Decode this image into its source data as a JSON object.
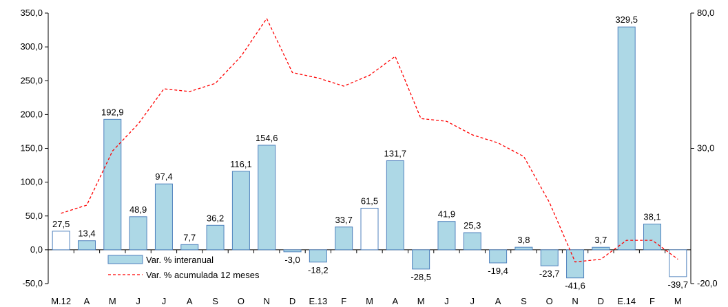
{
  "chart_data": {
    "type": "bar",
    "categories": [
      "M.12",
      "A",
      "M",
      "J",
      "J",
      "A",
      "S",
      "O",
      "N",
      "D",
      "E.13",
      "F",
      "M",
      "A",
      "M",
      "J",
      "J",
      "A",
      "S",
      "O",
      "N",
      "D",
      "E.14",
      "F",
      "M"
    ],
    "series": [
      {
        "name": "Var. % interanual",
        "type": "bar",
        "axis": "left",
        "values": [
          27.5,
          13.4,
          192.9,
          48.9,
          97.4,
          7.7,
          36.2,
          116.1,
          154.6,
          -3.0,
          -18.2,
          33.7,
          61.5,
          131.7,
          -28.5,
          41.9,
          25.3,
          -19.4,
          3.8,
          -23.7,
          -41.6,
          3.7,
          329.5,
          38.1,
          -39.7
        ],
        "labels": [
          "27,5",
          "13,4",
          "192,9",
          "48,9",
          "97,4",
          "7,7",
          "36,2",
          "116,1",
          "154,6",
          "-3,0",
          "-18,2",
          "33,7",
          "61,5",
          "131,7",
          "-28,5",
          "41,9",
          "25,3",
          "-19,4",
          "3,8",
          "-23,7",
          "-41,6",
          "3,7",
          "329,5",
          "38,1",
          "-39,7"
        ],
        "hollow": [
          true,
          false,
          false,
          false,
          false,
          false,
          false,
          false,
          false,
          false,
          false,
          false,
          true,
          false,
          false,
          false,
          false,
          false,
          false,
          false,
          false,
          false,
          false,
          false,
          true
        ],
        "color": "#add8e6",
        "stroke": "#4f81bd"
      },
      {
        "name": "Var. % acumulada 12 meses",
        "type": "line",
        "axis": "right",
        "style": "dashed",
        "color": "#ff0000",
        "values": [
          6,
          9,
          29,
          39,
          52,
          51,
          54,
          64,
          78,
          58,
          56,
          53,
          57,
          64,
          41,
          40,
          35,
          32,
          27,
          10,
          -12,
          -11,
          -4,
          -4,
          -11
        ]
      }
    ],
    "y_left": {
      "ylim": [
        -50,
        350
      ],
      "ticks": [
        -50,
        0,
        50,
        100,
        150,
        200,
        250,
        300,
        350
      ],
      "tick_labels": [
        "-50,0",
        "0,0",
        "50,0",
        "100,0",
        "150,0",
        "200,0",
        "250,0",
        "300,0",
        "350,0"
      ]
    },
    "y_right": {
      "ylim": [
        -20,
        80
      ],
      "ticks": [
        -20,
        30,
        80
      ],
      "tick_labels": [
        "-20,0",
        "30,0",
        "80,0"
      ]
    },
    "legend": {
      "placement": "bottom-left-inside",
      "entries": [
        "Var. % interanual",
        "Var. % acumulada 12 meses"
      ]
    },
    "grid": false
  }
}
